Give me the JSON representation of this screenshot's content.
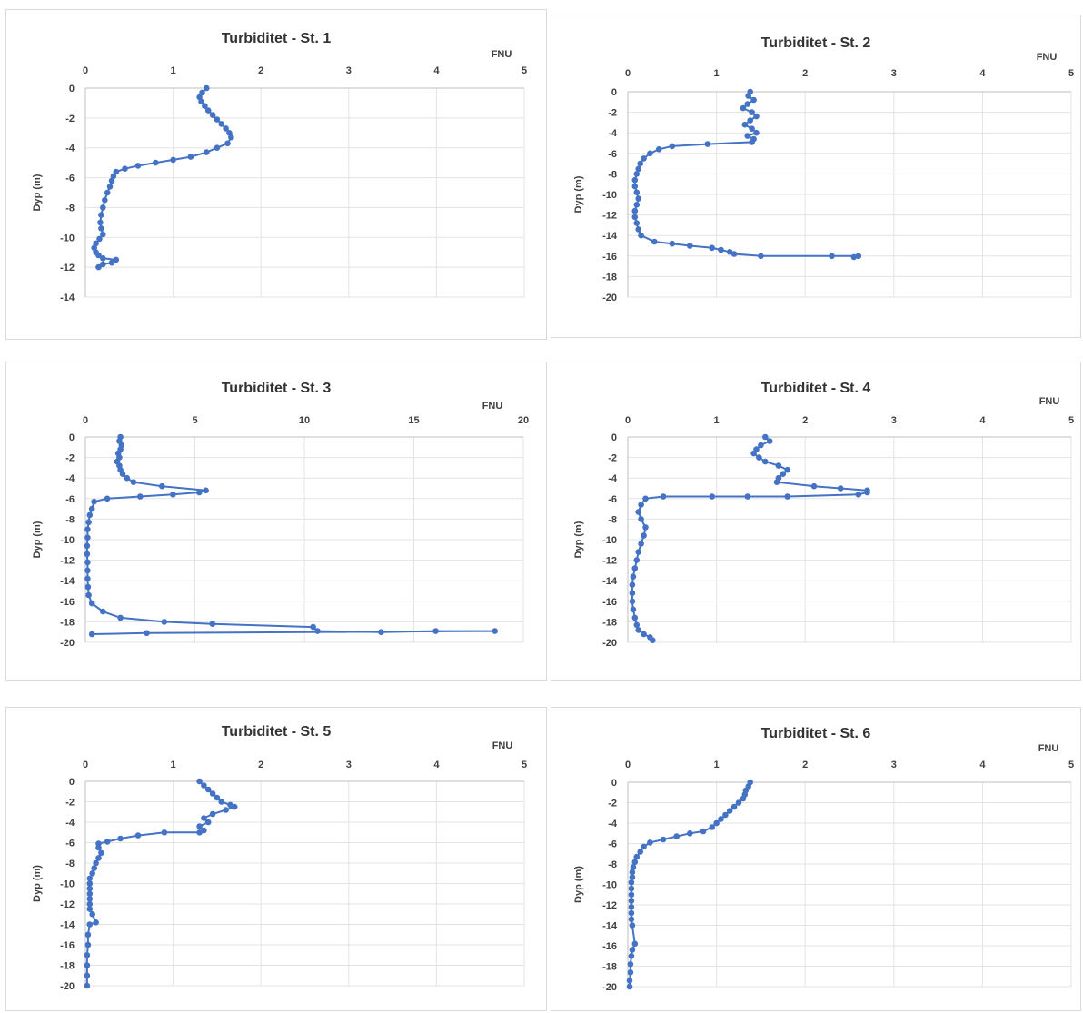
{
  "colors": {
    "series": "#4472c4",
    "grid": "#e3e3e3",
    "frame": "#d9d9d9"
  },
  "chart_data": [
    {
      "type": "line",
      "title": "Turbiditet - St. 1",
      "xlabel": "FNU",
      "ylabel": "Dyp (m)",
      "xlim": [
        0,
        5
      ],
      "xticks": [
        0,
        1,
        2,
        3,
        4,
        5
      ],
      "ylim": [
        -14,
        0
      ],
      "yticks": [
        0,
        -2,
        -4,
        -6,
        -8,
        -10,
        -12,
        -14
      ],
      "grid": true,
      "series": [
        {
          "x": [
            1.38,
            1.33,
            1.3,
            1.32,
            1.36,
            1.4,
            1.45,
            1.5,
            1.55,
            1.6,
            1.64,
            1.66,
            1.62,
            1.5,
            1.38,
            1.2,
            1.0,
            0.8,
            0.6,
            0.45,
            0.35,
            0.32,
            0.3,
            0.28,
            0.25,
            0.22,
            0.2,
            0.18,
            0.17,
            0.18,
            0.2,
            0.16,
            0.12,
            0.1,
            0.12,
            0.15,
            0.2,
            0.35,
            0.3,
            0.2,
            0.15
          ],
          "y": [
            0,
            -0.3,
            -0.6,
            -0.9,
            -1.2,
            -1.5,
            -1.8,
            -2.1,
            -2.4,
            -2.7,
            -3.0,
            -3.3,
            -3.7,
            -4.0,
            -4.3,
            -4.6,
            -4.8,
            -5.0,
            -5.2,
            -5.4,
            -5.6,
            -5.9,
            -6.2,
            -6.6,
            -7.0,
            -7.5,
            -8.0,
            -8.5,
            -9.0,
            -9.4,
            -9.8,
            -10.1,
            -10.4,
            -10.7,
            -11.0,
            -11.2,
            -11.4,
            -11.5,
            -11.7,
            -11.8,
            -12.0
          ]
        }
      ]
    },
    {
      "type": "line",
      "title": "Turbiditet - St. 2",
      "xlabel": "FNU",
      "ylabel": "Dyp (m)",
      "xlim": [
        0,
        5
      ],
      "xticks": [
        0,
        1,
        2,
        3,
        4,
        5
      ],
      "ylim": [
        -20,
        0
      ],
      "yticks": [
        0,
        -2,
        -4,
        -6,
        -8,
        -10,
        -12,
        -14,
        -16,
        -18,
        -20
      ],
      "grid": true,
      "series": [
        {
          "x": [
            1.38,
            1.36,
            1.42,
            1.35,
            1.3,
            1.4,
            1.45,
            1.38,
            1.32,
            1.4,
            1.45,
            1.35,
            1.42,
            1.4,
            0.9,
            0.5,
            0.35,
            0.25,
            0.18,
            0.14,
            0.12,
            0.1,
            0.08,
            0.08,
            0.1,
            0.12,
            0.1,
            0.08,
            0.08,
            0.1,
            0.12,
            0.15,
            0.3,
            0.5,
            0.7,
            0.95,
            1.05,
            1.15,
            1.2,
            1.5,
            2.3,
            2.6,
            2.55
          ],
          "y": [
            0,
            -0.4,
            -0.8,
            -1.2,
            -1.6,
            -2.0,
            -2.4,
            -2.8,
            -3.2,
            -3.6,
            -4.0,
            -4.3,
            -4.6,
            -4.9,
            -5.1,
            -5.3,
            -5.6,
            -6.0,
            -6.5,
            -7.0,
            -7.5,
            -8.0,
            -8.6,
            -9.2,
            -9.8,
            -10.4,
            -11.0,
            -11.6,
            -12.2,
            -12.8,
            -13.4,
            -14.0,
            -14.6,
            -14.8,
            -15.0,
            -15.2,
            -15.4,
            -15.6,
            -15.8,
            -16.0,
            -16.0,
            -16.0,
            -16.1
          ]
        }
      ]
    },
    {
      "type": "line",
      "title": "Turbiditet - St. 3",
      "xlabel": "FNU",
      "ylabel": "Dyp (m)",
      "xlim": [
        0,
        20
      ],
      "xticks": [
        0,
        5,
        10,
        15,
        20
      ],
      "ylim": [
        -20,
        0
      ],
      "yticks": [
        0,
        -2,
        -4,
        -6,
        -8,
        -10,
        -12,
        -14,
        -16,
        -18,
        -20
      ],
      "grid": true,
      "series": [
        {
          "x": [
            1.6,
            1.55,
            1.65,
            1.6,
            1.5,
            1.55,
            1.45,
            1.55,
            1.6,
            1.7,
            1.9,
            2.2,
            3.5,
            5.5,
            5.2,
            4.0,
            2.5,
            1.0,
            0.4,
            0.3,
            0.2,
            0.15,
            0.1,
            0.1,
            0.08,
            0.08,
            0.1,
            0.1,
            0.1,
            0.12,
            0.15,
            0.3,
            0.8,
            1.6,
            3.6,
            5.8,
            10.4,
            10.6,
            13.5,
            16.0,
            18.7,
            2.8,
            0.3
          ],
          "y": [
            0,
            -0.4,
            -0.8,
            -1.2,
            -1.6,
            -2.0,
            -2.4,
            -2.8,
            -3.2,
            -3.6,
            -4.0,
            -4.4,
            -4.8,
            -5.2,
            -5.4,
            -5.6,
            -5.8,
            -6.0,
            -6.3,
            -7.0,
            -7.6,
            -8.3,
            -9.0,
            -9.8,
            -10.6,
            -11.4,
            -12.2,
            -13.0,
            -13.8,
            -14.6,
            -15.4,
            -16.2,
            -17.0,
            -17.6,
            -18.0,
            -18.2,
            -18.5,
            -18.9,
            -19.0,
            -18.9,
            -18.9,
            -19.1,
            -19.2
          ]
        }
      ]
    },
    {
      "type": "line",
      "title": "Turbiditet - St. 4",
      "xlabel": "FNU",
      "ylabel": "Dyp (m)",
      "xlim": [
        0,
        5
      ],
      "xticks": [
        0,
        1,
        2,
        3,
        4,
        5
      ],
      "ylim": [
        -20,
        0
      ],
      "yticks": [
        0,
        -2,
        -4,
        -6,
        -8,
        -10,
        -12,
        -14,
        -16,
        -18,
        -20
      ],
      "grid": true,
      "series": [
        {
          "x": [
            1.55,
            1.6,
            1.5,
            1.45,
            1.42,
            1.48,
            1.55,
            1.7,
            1.8,
            1.75,
            1.7,
            1.68,
            2.1,
            2.4,
            2.7,
            2.7,
            2.6,
            1.8,
            1.35,
            0.95,
            0.4,
            0.2,
            0.15,
            0.12,
            0.15,
            0.2,
            0.18,
            0.15,
            0.12,
            0.1,
            0.08,
            0.06,
            0.05,
            0.05,
            0.05,
            0.06,
            0.08,
            0.1,
            0.12,
            0.18,
            0.25,
            0.28
          ],
          "y": [
            0,
            -0.4,
            -0.8,
            -1.2,
            -1.6,
            -2.0,
            -2.4,
            -2.8,
            -3.2,
            -3.6,
            -4.0,
            -4.4,
            -4.8,
            -5.0,
            -5.2,
            -5.4,
            -5.6,
            -5.8,
            -5.8,
            -5.8,
            -5.8,
            -6.0,
            -6.6,
            -7.3,
            -8.0,
            -8.8,
            -9.6,
            -10.4,
            -11.2,
            -12.0,
            -12.8,
            -13.6,
            -14.4,
            -15.2,
            -16.0,
            -16.8,
            -17.6,
            -18.3,
            -18.8,
            -19.2,
            -19.5,
            -19.8
          ]
        }
      ]
    },
    {
      "type": "line",
      "title": "Turbiditet - St. 5",
      "xlabel": "FNU",
      "ylabel": "Dyp (m)",
      "xlim": [
        0,
        5
      ],
      "xticks": [
        0,
        1,
        2,
        3,
        4,
        5
      ],
      "ylim": [
        -20,
        0
      ],
      "yticks": [
        0,
        -2,
        -4,
        -6,
        -8,
        -10,
        -12,
        -14,
        -16,
        -18,
        -20
      ],
      "grid": true,
      "series": [
        {
          "x": [
            1.3,
            1.35,
            1.4,
            1.45,
            1.5,
            1.55,
            1.65,
            1.7,
            1.6,
            1.45,
            1.35,
            1.4,
            1.3,
            1.35,
            1.3,
            0.9,
            0.6,
            0.4,
            0.25,
            0.15,
            0.15,
            0.18,
            0.15,
            0.12,
            0.1,
            0.08,
            0.05,
            0.05,
            0.05,
            0.05,
            0.05,
            0.05,
            0.05,
            0.08,
            0.12,
            0.05,
            0.03,
            0.03,
            0.02,
            0.02,
            0.02,
            0.02
          ],
          "y": [
            0,
            -0.4,
            -0.8,
            -1.2,
            -1.6,
            -2.0,
            -2.3,
            -2.5,
            -2.8,
            -3.2,
            -3.6,
            -4.0,
            -4.4,
            -4.8,
            -5.0,
            -5.0,
            -5.3,
            -5.6,
            -5.9,
            -6.1,
            -6.5,
            -7.0,
            -7.5,
            -8.0,
            -8.5,
            -9.0,
            -9.5,
            -10.0,
            -10.5,
            -11.0,
            -11.5,
            -12.0,
            -12.5,
            -13.0,
            -13.8,
            -14.0,
            -15.0,
            -16.0,
            -17.0,
            -18.0,
            -19.0,
            -20.0
          ]
        }
      ]
    },
    {
      "type": "line",
      "title": "Turbiditet - St. 6",
      "xlabel": "FNU",
      "ylabel": "Dyp (m)",
      "xlim": [
        0,
        5
      ],
      "xticks": [
        0,
        1,
        2,
        3,
        4,
        5
      ],
      "ylim": [
        -20,
        0
      ],
      "yticks": [
        0,
        -2,
        -4,
        -6,
        -8,
        -10,
        -12,
        -14,
        -16,
        -18,
        -20
      ],
      "grid": true,
      "series": [
        {
          "x": [
            1.38,
            1.36,
            1.33,
            1.32,
            1.3,
            1.25,
            1.2,
            1.15,
            1.1,
            1.05,
            1.0,
            0.95,
            0.85,
            0.7,
            0.55,
            0.4,
            0.25,
            0.18,
            0.14,
            0.1,
            0.08,
            0.06,
            0.05,
            0.05,
            0.04,
            0.04,
            0.04,
            0.04,
            0.04,
            0.04,
            0.04,
            0.05,
            0.08,
            0.05,
            0.04,
            0.03,
            0.03,
            0.02,
            0.02
          ],
          "y": [
            0,
            -0.4,
            -0.8,
            -1.2,
            -1.6,
            -2.0,
            -2.4,
            -2.8,
            -3.2,
            -3.6,
            -4.0,
            -4.4,
            -4.8,
            -5.0,
            -5.3,
            -5.6,
            -5.9,
            -6.3,
            -6.8,
            -7.3,
            -7.8,
            -8.3,
            -8.8,
            -9.3,
            -9.8,
            -10.4,
            -11.0,
            -11.6,
            -12.2,
            -12.8,
            -13.4,
            -14.0,
            -15.8,
            -16.4,
            -17.0,
            -17.8,
            -18.6,
            -19.4,
            -20.0
          ]
        }
      ]
    }
  ]
}
